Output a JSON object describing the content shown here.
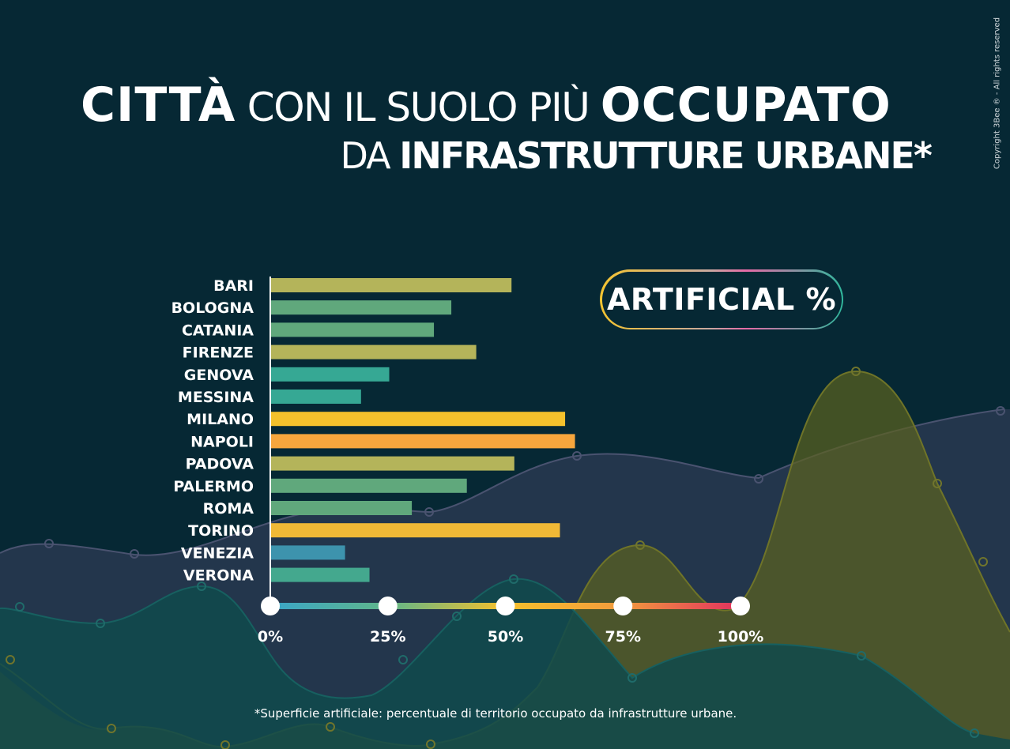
{
  "title": {
    "line1_bold1": "CITTÀ",
    "line1_light": "CON IL SUOLO PIÙ",
    "line1_bold2": "OCCUPATO",
    "line2_light": "DA",
    "line2_bold": "INFRASTRUTTURE URBANE*"
  },
  "copyright": "Copyright 3Bee ® - All rights reserved",
  "badge": "ARTIFICIAL %",
  "footnote": "*Superficie artificiale: percentuale di territorio occupato da infrastrutture urbane.",
  "colors": {
    "background": "#062834",
    "scale_gradient": [
      "#3aa6c8",
      "#5fb68a",
      "#f5c02c",
      "#f29a3d",
      "#e2305f"
    ]
  },
  "chart_data": {
    "type": "bar",
    "orientation": "horizontal",
    "categories": [
      "BARI",
      "BOLOGNA",
      "CATANIA",
      "FIRENZE",
      "GENOVA",
      "MESSINA",
      "MILANO",
      "NAPOLI",
      "PADOVA",
      "PALERMO",
      "ROMA",
      "TORINO",
      "VENEZIA",
      "VERONA"
    ],
    "values": [
      51.3,
      38.5,
      34.8,
      43.8,
      25.3,
      19.3,
      62.7,
      64.8,
      51.9,
      41.8,
      30.1,
      61.6,
      15.9,
      21.1
    ],
    "bar_colors": [
      "#b4b45a",
      "#60a87c",
      "#60a87c",
      "#b4b45a",
      "#36a894",
      "#36a894",
      "#f4c12c",
      "#f7a63d",
      "#b4b45a",
      "#60a87c",
      "#60a87c",
      "#f0b936",
      "#3d93ad",
      "#44a88e"
    ],
    "xlim": [
      0,
      100
    ],
    "xticks": [
      0,
      25,
      50,
      75,
      100
    ],
    "xtick_labels": [
      "0%",
      "25%",
      "50%",
      "75%",
      "100%"
    ],
    "title": "",
    "xlabel": "",
    "ylabel": ""
  }
}
